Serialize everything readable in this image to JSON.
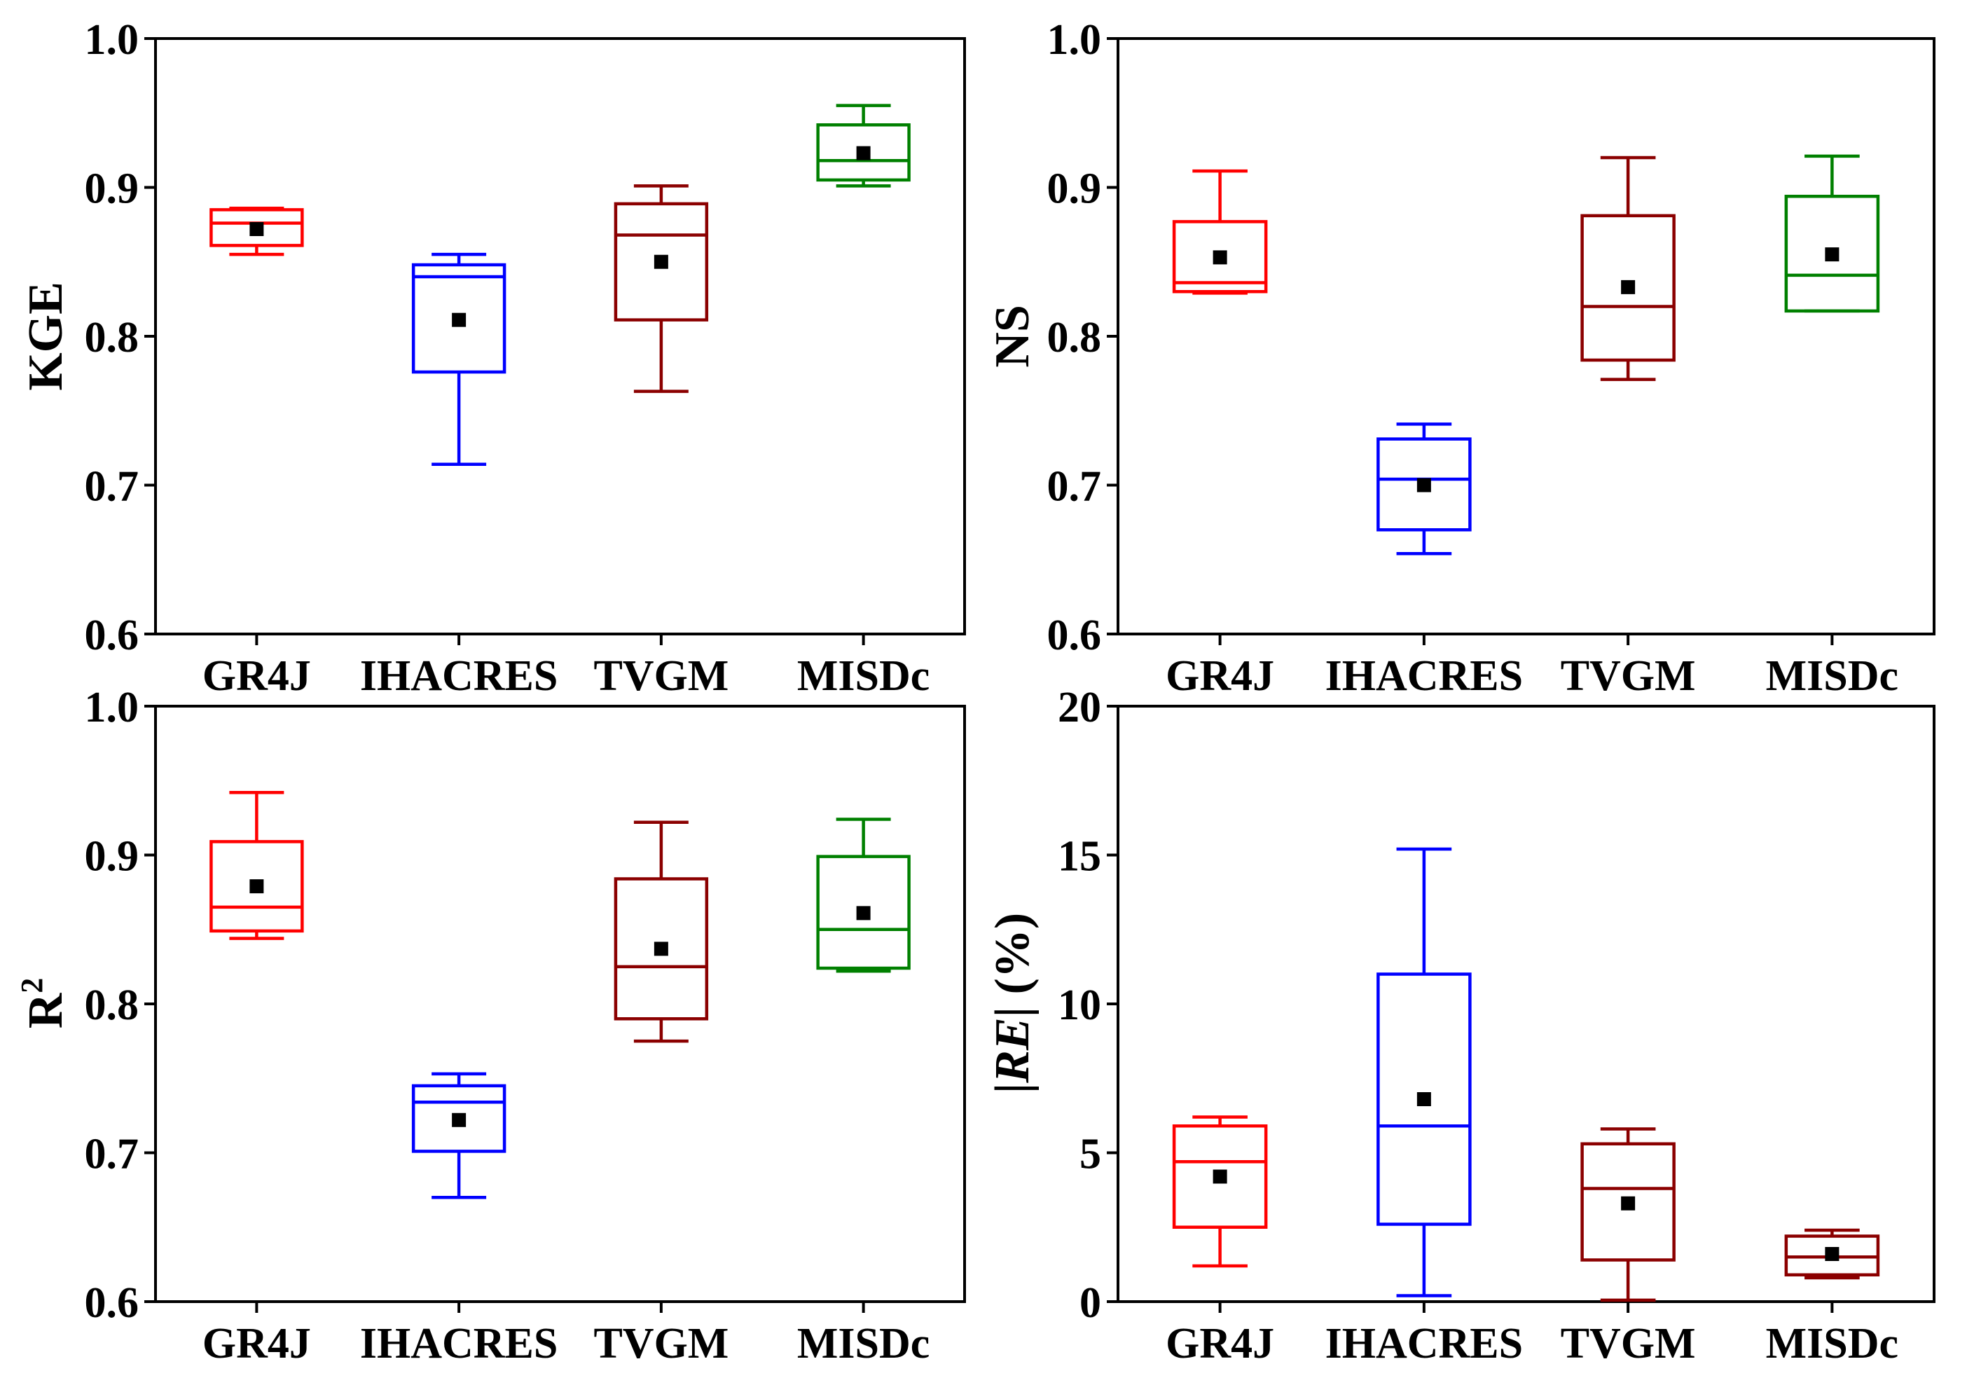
{
  "chart_data": [
    {
      "type": "box",
      "panel": "top-left",
      "ylabel": "KGE",
      "ylim": [
        0.6,
        1.0
      ],
      "yticks": [
        "0.6",
        "0.7",
        "0.8",
        "0.9",
        "1.0"
      ],
      "categories": [
        "GR4J",
        "IHACRES",
        "TVGM",
        "MISDc"
      ],
      "colors": [
        "#ff0000",
        "#0000ff",
        "#8b0000",
        "#008000"
      ],
      "boxes": [
        {
          "min": 0.855,
          "q1": 0.861,
          "median": 0.876,
          "q3": 0.885,
          "max": 0.886,
          "mean": 0.872
        },
        {
          "min": 0.714,
          "q1": 0.776,
          "median": 0.84,
          "q3": 0.848,
          "max": 0.855,
          "mean": 0.811
        },
        {
          "min": 0.763,
          "q1": 0.811,
          "median": 0.868,
          "q3": 0.889,
          "max": 0.901,
          "mean": 0.85
        },
        {
          "min": 0.901,
          "q1": 0.905,
          "median": 0.918,
          "q3": 0.942,
          "max": 0.955,
          "mean": 0.923
        }
      ]
    },
    {
      "type": "box",
      "panel": "top-right",
      "ylabel": "NS",
      "ylim": [
        0.6,
        1.0
      ],
      "yticks": [
        "0.6",
        "0.7",
        "0.8",
        "0.9",
        "1.0"
      ],
      "categories": [
        "GR4J",
        "IHACRES",
        "TVGM",
        "MISDc"
      ],
      "colors": [
        "#ff0000",
        "#0000ff",
        "#8b0000",
        "#008000"
      ],
      "boxes": [
        {
          "min": 0.829,
          "q1": 0.83,
          "median": 0.836,
          "q3": 0.877,
          "max": 0.911,
          "mean": 0.853
        },
        {
          "min": 0.654,
          "q1": 0.67,
          "median": 0.704,
          "q3": 0.731,
          "max": 0.741,
          "mean": 0.7
        },
        {
          "min": 0.771,
          "q1": 0.784,
          "median": 0.82,
          "q3": 0.881,
          "max": 0.92,
          "mean": 0.833
        },
        {
          "min": 0.817,
          "q1": 0.817,
          "median": 0.841,
          "q3": 0.894,
          "max": 0.921,
          "mean": 0.855
        }
      ]
    },
    {
      "type": "box",
      "panel": "bottom-left",
      "ylabel": "R",
      "ylabel_sup": "2",
      "ylim": [
        0.6,
        1.0
      ],
      "yticks": [
        "0.6",
        "0.7",
        "0.8",
        "0.9",
        "1.0"
      ],
      "categories": [
        "GR4J",
        "IHACRES",
        "TVGM",
        "MISDc"
      ],
      "colors": [
        "#ff0000",
        "#0000ff",
        "#8b0000",
        "#008000"
      ],
      "boxes": [
        {
          "min": 0.844,
          "q1": 0.849,
          "median": 0.865,
          "q3": 0.909,
          "max": 0.942,
          "mean": 0.879
        },
        {
          "min": 0.67,
          "q1": 0.701,
          "median": 0.734,
          "q3": 0.745,
          "max": 0.753,
          "mean": 0.722
        },
        {
          "min": 0.775,
          "q1": 0.79,
          "median": 0.825,
          "q3": 0.884,
          "max": 0.922,
          "mean": 0.837
        },
        {
          "min": 0.822,
          "q1": 0.824,
          "median": 0.85,
          "q3": 0.899,
          "max": 0.924,
          "mean": 0.861
        }
      ]
    },
    {
      "type": "box",
      "panel": "bottom-right",
      "ylabel_pre": "|",
      "ylabel_italic": "RE",
      "ylabel_post": "| (%)",
      "ylim": [
        0,
        20
      ],
      "yticks": [
        "0",
        "5",
        "10",
        "15",
        "20"
      ],
      "categories": [
        "GR4J",
        "IHACRES",
        "TVGM",
        "MISDc"
      ],
      "colors": [
        "#ff0000",
        "#0000ff",
        "#8b0000",
        "#8b0000"
      ],
      "boxes": [
        {
          "min": 1.2,
          "q1": 2.5,
          "median": 4.7,
          "q3": 5.9,
          "max": 6.2,
          "mean": 4.2
        },
        {
          "min": 0.2,
          "q1": 2.6,
          "median": 5.9,
          "q3": 11.0,
          "max": 15.2,
          "mean": 6.8
        },
        {
          "min": 0.05,
          "q1": 1.4,
          "median": 3.8,
          "q3": 5.3,
          "max": 5.8,
          "mean": 3.3
        },
        {
          "min": 0.8,
          "q1": 0.9,
          "median": 1.5,
          "q3": 2.2,
          "max": 2.4,
          "mean": 1.6
        }
      ]
    }
  ]
}
